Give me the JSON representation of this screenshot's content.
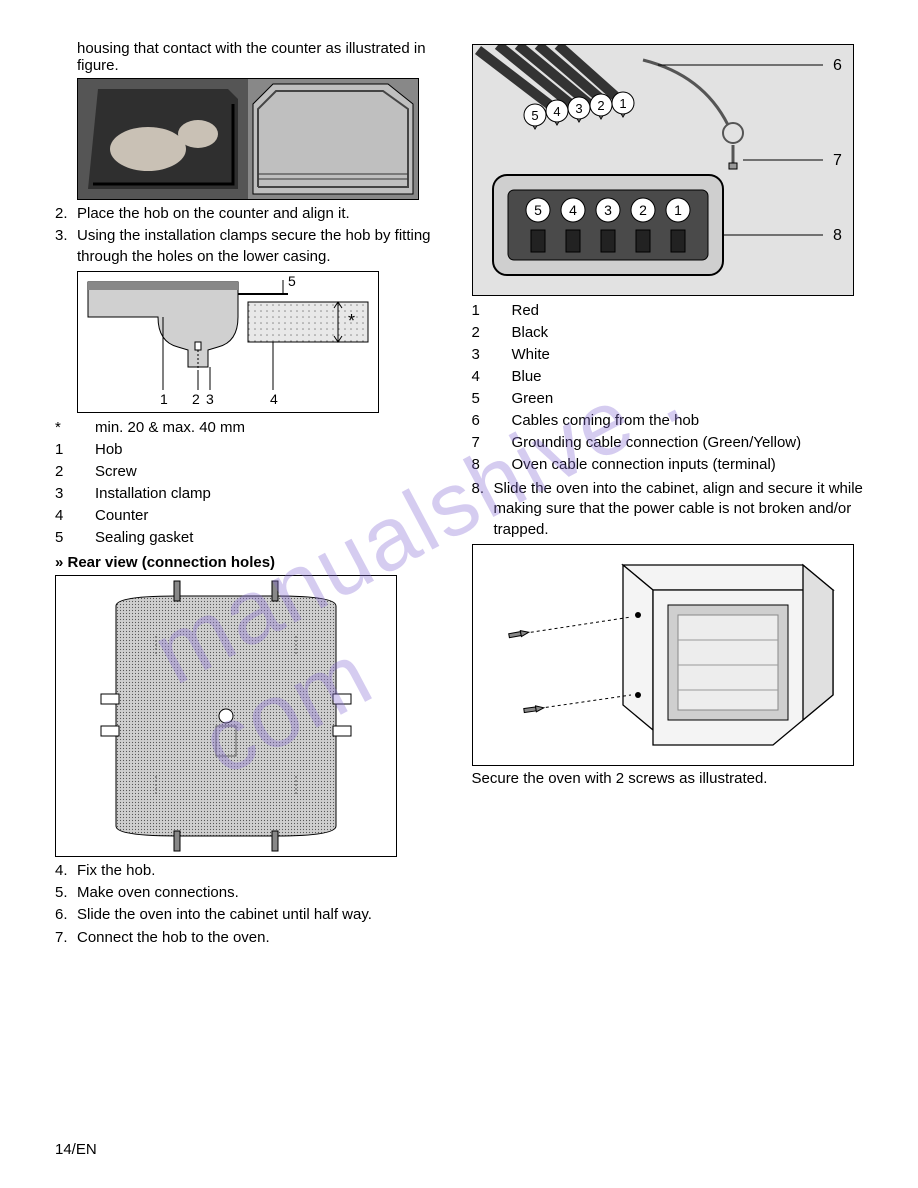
{
  "left": {
    "intro": "housing that contact with the counter as illustrated in figure.",
    "step2_num": "2.",
    "step2": "Place the hob on the counter and align it.",
    "step3_num": "3.",
    "step3": "Using the installation clamps secure the hob by fitting through the holes on the lower casing.",
    "clamp_labels": {
      "l1": "1",
      "l2": "2",
      "l3": "3",
      "l4": "4",
      "l5": "5",
      "star": "*"
    },
    "legend1": [
      {
        "key": "*",
        "val": "min. 20 & max. 40 mm"
      },
      {
        "key": "1",
        "val": "Hob"
      },
      {
        "key": "2",
        "val": "Screw"
      },
      {
        "key": "3",
        "val": "Installation clamp"
      },
      {
        "key": "4",
        "val": "Counter"
      },
      {
        "key": "5",
        "val": "Sealing gasket"
      }
    ],
    "rear_head": "» Rear view (connection holes)",
    "step4_num": "4.",
    "step4": "Fix the hob.",
    "step5_num": "5.",
    "step5": "Make oven connections.",
    "step6_num": "6.",
    "step6": "Slide the oven into the cabinet until half way.",
    "step7_num": "7.",
    "step7": "Connect the hob to the oven."
  },
  "right": {
    "wiring_labels": {
      "n1": "1",
      "n2": "2",
      "n3": "3",
      "n4": "4",
      "n5": "5",
      "c6": "6",
      "c7": "7",
      "c8": "8"
    },
    "legend2": [
      {
        "key": "1",
        "val": "Red"
      },
      {
        "key": "2",
        "val": "Black"
      },
      {
        "key": "3",
        "val": "White"
      },
      {
        "key": "4",
        "val": "Blue"
      },
      {
        "key": "5",
        "val": "Green"
      },
      {
        "key": "6",
        "val": "Cables coming from the hob"
      },
      {
        "key": "7",
        "val": "Grounding cable connection (Green/Yellow)"
      },
      {
        "key": "8",
        "val": "Oven cable connection inputs (terminal)"
      }
    ],
    "step8_num": "8.",
    "step8": "Slide the oven into the cabinet, align and secure it while making sure that the power cable is not broken and/or trapped.",
    "secure": "Secure the oven with 2 screws as illustrated."
  },
  "footer": "14/EN",
  "colors": {
    "line": "#000000",
    "hatch": "#6b6b6b",
    "light": "#d9d9d9",
    "mid": "#bdbdbd",
    "dark": "#3a3a3a",
    "badge_fill": "#ffffff",
    "badge_stroke": "#000000",
    "watermark": "#8a6fd6"
  }
}
